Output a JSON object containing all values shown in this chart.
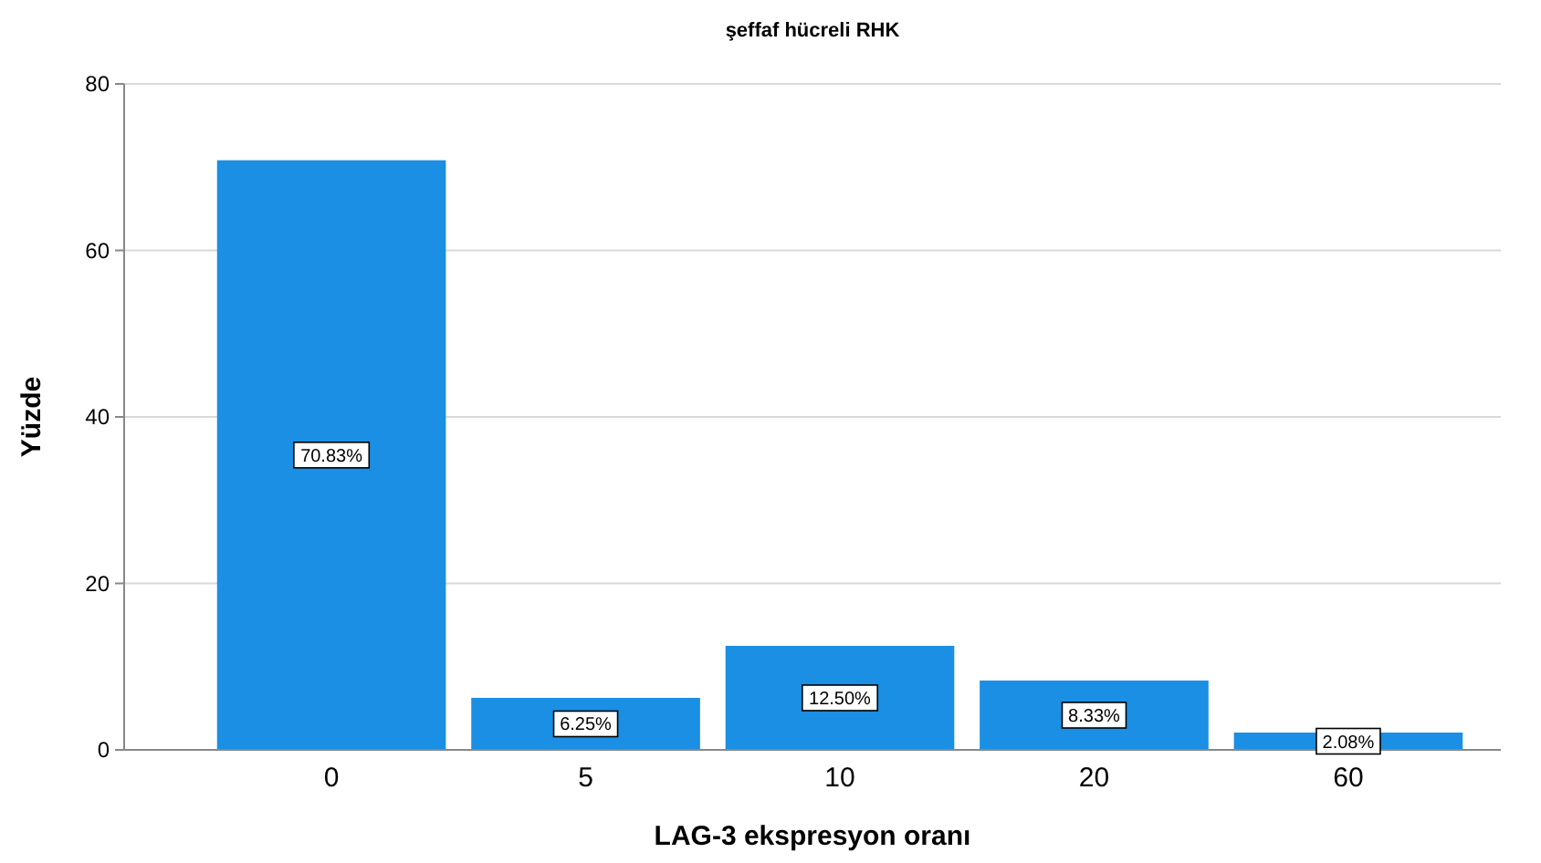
{
  "chart_data": {
    "type": "bar",
    "title": "şeffaf hücreli RHK",
    "xlabel": "LAG-3 ekspresyon oranı",
    "ylabel": "Yüzde",
    "categories": [
      "0",
      "5",
      "10",
      "20",
      "60"
    ],
    "values": [
      70.83,
      6.25,
      12.5,
      8.33,
      2.08
    ],
    "value_labels": [
      "70.83%",
      "6.25%",
      "12.50%",
      "8.33%",
      "2.08%"
    ],
    "color": "#1a8fe3",
    "ylim": [
      0,
      80
    ],
    "yticks": [
      0,
      20,
      40,
      60,
      80
    ],
    "grid": "y"
  }
}
